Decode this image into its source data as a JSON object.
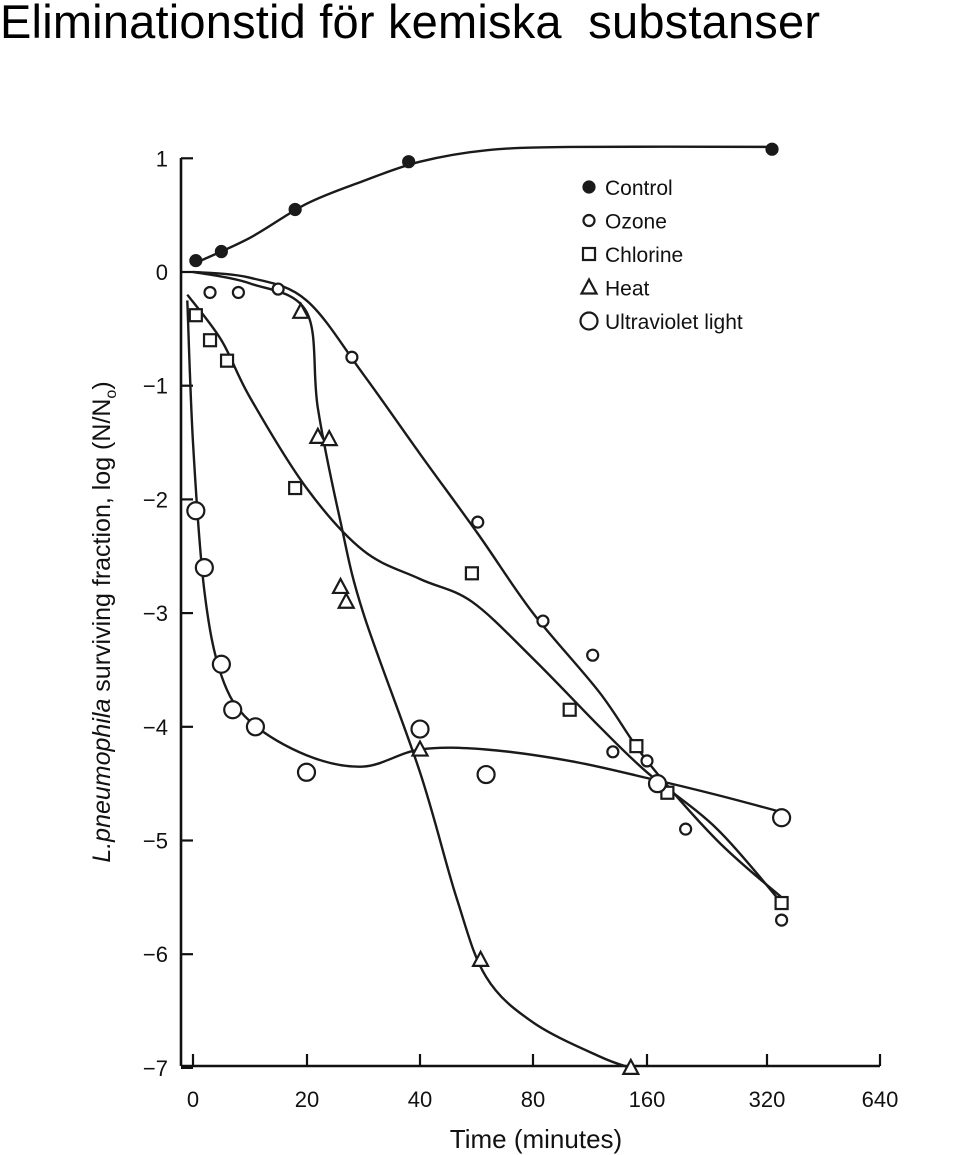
{
  "slide": {
    "title": "Eliminationstid för kemiska  substanser"
  },
  "chart_data": {
    "type": "scatter",
    "xlabel": "Time (minutes)",
    "ylabel_italic": "L.pneumophila",
    "ylabel_rest": " surviving fraction, log (N/N",
    "ylabel_sub": "o",
    "ylabel_close": ")",
    "x_ticks": [
      "0",
      "20",
      "40",
      "80",
      "160",
      "320",
      "640"
    ],
    "y_ticks": [
      "1",
      "0",
      "−1",
      "−2",
      "−3",
      "−4",
      "−5",
      "−6",
      "−7"
    ],
    "ylim": [
      -7,
      1
    ],
    "x_scale": "piecewise: linear 0–40, doubling 40–640",
    "legend_position": "top-right",
    "series": [
      {
        "name": "Control",
        "marker": "filled-circle",
        "points": [
          [
            0.5,
            0.1
          ],
          [
            5,
            0.18
          ],
          [
            18,
            0.55
          ],
          [
            38,
            0.97
          ],
          [
            330,
            1.08
          ]
        ],
        "curve": [
          [
            0,
            0.07
          ],
          [
            10,
            0.3
          ],
          [
            20,
            0.6
          ],
          [
            30,
            0.8
          ],
          [
            40,
            0.97
          ],
          [
            60,
            1.07
          ],
          [
            100,
            1.1
          ],
          [
            330,
            1.1
          ]
        ]
      },
      {
        "name": "Ozone",
        "marker": "small-circle",
        "points": [
          [
            3,
            -0.18
          ],
          [
            8,
            -0.18
          ],
          [
            15,
            -0.15
          ],
          [
            28,
            -0.75
          ],
          [
            57,
            -2.2
          ],
          [
            85,
            -3.07
          ],
          [
            115,
            -3.37
          ],
          [
            130,
            -4.22
          ],
          [
            160,
            -4.3
          ],
          [
            200,
            -4.9
          ],
          [
            350,
            -5.7
          ]
        ],
        "curve": [
          [
            0,
            0
          ],
          [
            10,
            -0.05
          ],
          [
            20,
            -0.25
          ],
          [
            30,
            -0.9
          ],
          [
            40,
            -1.6
          ],
          [
            57,
            -2.3
          ],
          [
            80,
            -3.0
          ],
          [
            120,
            -3.7
          ],
          [
            160,
            -4.3
          ],
          [
            240,
            -5.0
          ],
          [
            350,
            -5.5
          ]
        ]
      },
      {
        "name": "Chlorine",
        "marker": "square",
        "points": [
          [
            0.5,
            -0.38
          ],
          [
            3,
            -0.6
          ],
          [
            6,
            -0.78
          ],
          [
            18,
            -1.9
          ],
          [
            55,
            -2.65
          ],
          [
            100,
            -3.85
          ],
          [
            150,
            -4.17
          ],
          [
            180,
            -4.58
          ],
          [
            350,
            -5.55
          ]
        ],
        "curve": [
          [
            -1,
            -0.2
          ],
          [
            5,
            -0.6
          ],
          [
            10,
            -1.1
          ],
          [
            20,
            -1.9
          ],
          [
            30,
            -2.45
          ],
          [
            40,
            -2.7
          ],
          [
            55,
            -2.9
          ],
          [
            80,
            -3.4
          ],
          [
            120,
            -4.0
          ],
          [
            160,
            -4.4
          ],
          [
            240,
            -4.9
          ],
          [
            350,
            -5.55
          ]
        ]
      },
      {
        "name": "Heat",
        "marker": "triangle",
        "points": [
          [
            19,
            -0.35
          ],
          [
            22,
            -1.45
          ],
          [
            24,
            -1.47
          ],
          [
            26,
            -2.77
          ],
          [
            27,
            -2.9
          ],
          [
            40,
            -4.2
          ],
          [
            58,
            -6.05
          ],
          [
            145,
            -7.0
          ]
        ],
        "curve": [
          [
            0,
            0
          ],
          [
            10,
            -0.1
          ],
          [
            20,
            -0.35
          ],
          [
            22,
            -1.2
          ],
          [
            26,
            -2.2
          ],
          [
            30,
            -3.0
          ],
          [
            40,
            -4.4
          ],
          [
            50,
            -5.5
          ],
          [
            60,
            -6.2
          ],
          [
            80,
            -6.6
          ],
          [
            120,
            -6.9
          ],
          [
            145,
            -7.0
          ]
        ]
      },
      {
        "name": "Ultraviolet light",
        "marker": "large-circle",
        "points": [
          [
            0.5,
            -2.1
          ],
          [
            2,
            -2.6
          ],
          [
            5,
            -3.45
          ],
          [
            7,
            -3.85
          ],
          [
            11,
            -4.0
          ],
          [
            20,
            -4.4
          ],
          [
            40,
            -4.02
          ],
          [
            60,
            -4.42
          ],
          [
            170,
            -4.5
          ],
          [
            350,
            -4.8
          ]
        ],
        "curve": [
          [
            -1,
            -0.25
          ],
          [
            0,
            -1.5
          ],
          [
            2,
            -2.8
          ],
          [
            5,
            -3.55
          ],
          [
            10,
            -3.95
          ],
          [
            20,
            -4.25
          ],
          [
            30,
            -4.35
          ],
          [
            40,
            -4.2
          ],
          [
            60,
            -4.2
          ],
          [
            100,
            -4.3
          ],
          [
            160,
            -4.45
          ],
          [
            240,
            -4.6
          ],
          [
            350,
            -4.75
          ]
        ]
      }
    ]
  }
}
